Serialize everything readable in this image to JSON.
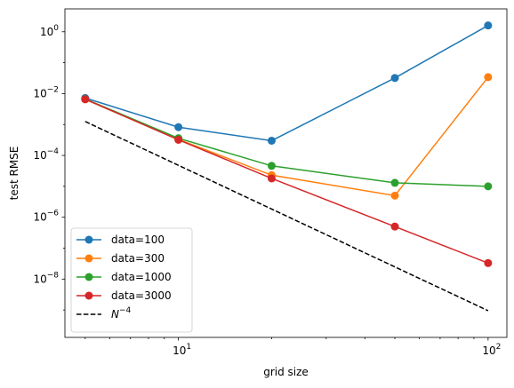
{
  "chart_data": {
    "type": "line",
    "title": "",
    "xlabel": "grid size",
    "ylabel": "test RMSE",
    "xscale": "log",
    "yscale": "log",
    "xlim": [
      4.3,
      115
    ],
    "ylim": [
      1.3e-10,
      5.5
    ],
    "xticks": [
      {
        "value": 10,
        "base": "10",
        "exp": "1"
      },
      {
        "value": 100,
        "base": "10",
        "exp": "2"
      }
    ],
    "yticks": [
      {
        "value": 1e-08,
        "base": "10",
        "exp": "−8"
      },
      {
        "value": 1e-06,
        "base": "10",
        "exp": "−6"
      },
      {
        "value": 0.0001,
        "base": "10",
        "exp": "−4"
      },
      {
        "value": 0.01,
        "base": "10",
        "exp": "−2"
      },
      {
        "value": 1,
        "base": "10",
        "exp": "0"
      }
    ],
    "x": [
      5,
      10,
      20,
      50,
      100
    ],
    "series": [
      {
        "name": "data=100",
        "color": "#1f77b4",
        "values": [
          0.0072,
          0.00082,
          0.0003,
          0.032,
          1.6
        ]
      },
      {
        "name": "data=300",
        "color": "#ff7f0e",
        "values": [
          0.0065,
          0.00033,
          2.3e-05,
          5e-06,
          0.034
        ]
      },
      {
        "name": "data=1000",
        "color": "#2ca02c",
        "values": [
          0.0067,
          0.00036,
          4.6e-05,
          1.3e-05,
          1e-05
        ]
      },
      {
        "name": "data=3000",
        "color": "#d62728",
        "values": [
          0.0066,
          0.00032,
          1.8e-05,
          5e-07,
          3.3e-08
        ]
      }
    ],
    "reference": {
      "name_base": "N",
      "name_exp": "−4",
      "color": "#000000",
      "style": "dashed",
      "x": [
        5,
        100
      ],
      "values": [
        0.00125,
        9.5e-10
      ]
    },
    "legend": {
      "placement": "lower-left"
    },
    "grid": false
  }
}
